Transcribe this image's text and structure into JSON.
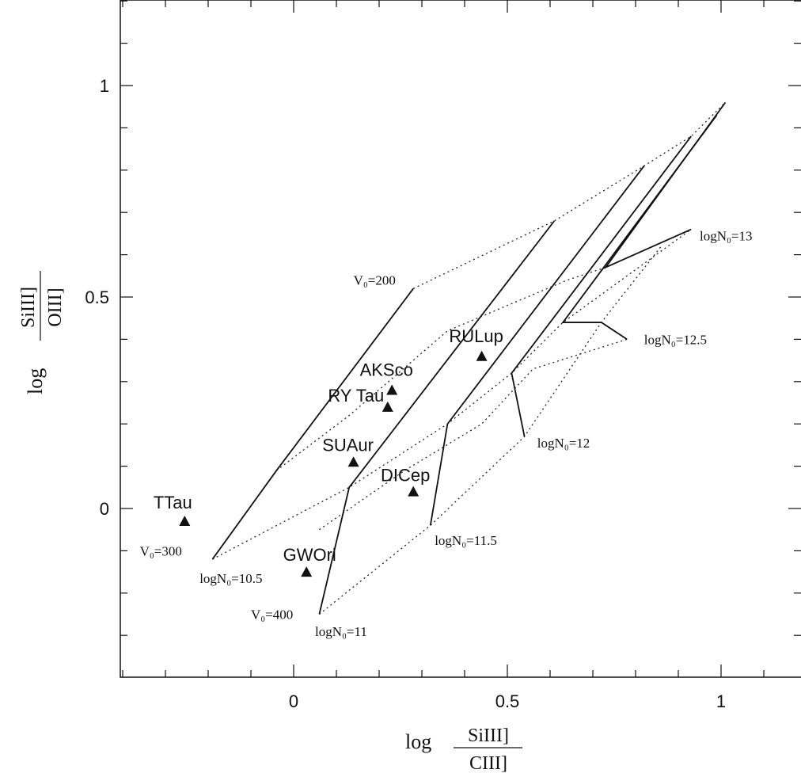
{
  "chart_data": {
    "type": "scatter",
    "x_axis": {
      "label_prefix": "log",
      "label_numerator": "SiIII]",
      "label_denominator": "CIII]",
      "range": [
        -0.4,
        1.2
      ],
      "major_ticks": [
        0,
        0.5,
        1
      ],
      "tick_labels": [
        "0",
        "0.5",
        "1"
      ],
      "minor_tick_step": 0.1
    },
    "y_axis": {
      "label_prefix": "log",
      "label_numerator": "SiIII]",
      "label_denominator": "OIII]",
      "range": [
        -0.4,
        1.2
      ],
      "major_ticks": [
        0,
        0.5,
        1
      ],
      "tick_labels": [
        "0",
        "0.5",
        "1"
      ],
      "minor_tick_step": 0.1
    },
    "grid": false,
    "stars": [
      {
        "name": "TTau",
        "x": -0.255,
        "y": -0.03
      },
      {
        "name": "GWOri",
        "x": 0.03,
        "y": -0.15
      },
      {
        "name": "SUAur",
        "x": 0.14,
        "y": 0.11
      },
      {
        "name": "RY Tau",
        "x": 0.22,
        "y": 0.24
      },
      {
        "name": "AKSco",
        "x": 0.23,
        "y": 0.28
      },
      {
        "name": "DICep",
        "x": 0.28,
        "y": 0.04
      },
      {
        "name": "RULup",
        "x": 0.44,
        "y": 0.36
      }
    ],
    "density_curves": [
      {
        "label": "logN₀=10.5",
        "points": [
          [
            -0.19,
            -0.12
          ],
          [
            -0.04,
            0.09
          ],
          [
            0.28,
            0.52
          ]
        ]
      },
      {
        "label": "logN₀=11",
        "points": [
          [
            0.06,
            -0.25
          ],
          [
            0.13,
            0.05
          ],
          [
            0.61,
            0.68
          ]
        ]
      },
      {
        "label": "logN₀=11.5",
        "points": [
          [
            0.32,
            -0.04
          ],
          [
            0.36,
            0.2
          ],
          [
            0.82,
            0.81
          ]
        ]
      },
      {
        "label": "logN₀=12",
        "points": [
          [
            0.54,
            0.17
          ],
          [
            0.51,
            0.32
          ],
          [
            0.93,
            0.88
          ]
        ]
      },
      {
        "label": "logN₀=12.5",
        "points": [
          [
            0.78,
            0.4
          ],
          [
            0.72,
            0.44
          ],
          [
            0.63,
            0.44
          ],
          [
            0.99,
            0.93
          ]
        ]
      },
      {
        "label": "logN₀=13",
        "points": [
          [
            0.93,
            0.66
          ],
          [
            0.73,
            0.57
          ],
          [
            1.01,
            0.96
          ]
        ]
      }
    ],
    "velocity_lines": [
      {
        "label": "V₀=200",
        "points": [
          [
            0.28,
            0.52
          ],
          [
            0.61,
            0.68
          ],
          [
            0.82,
            0.81
          ],
          [
            0.93,
            0.88
          ],
          [
            1.01,
            0.96
          ]
        ]
      },
      {
        "label": "",
        "points": [
          [
            -0.04,
            0.09
          ],
          [
            0.13,
            0.22
          ],
          [
            0.36,
            0.42
          ],
          [
            0.64,
            0.54
          ],
          [
            0.73,
            0.57
          ]
        ]
      },
      {
        "label": "V₀=300",
        "points": [
          [
            -0.19,
            -0.12
          ],
          [
            0.13,
            0.05
          ],
          [
            0.36,
            0.2
          ],
          [
            0.51,
            0.32
          ],
          [
            0.63,
            0.44
          ],
          [
            0.93,
            0.66
          ]
        ]
      },
      {
        "label": "",
        "points": [
          [
            0.06,
            -0.05
          ],
          [
            0.26,
            0.09
          ],
          [
            0.44,
            0.2
          ],
          [
            0.56,
            0.33
          ],
          [
            0.78,
            0.4
          ]
        ]
      },
      {
        "label": "V₀=400",
        "points": [
          [
            0.06,
            -0.25
          ],
          [
            0.32,
            -0.04
          ],
          [
            0.54,
            0.17
          ],
          [
            0.72,
            0.44
          ],
          [
            0.86,
            0.62
          ]
        ]
      }
    ],
    "annotations": [
      {
        "text": "V₀=200",
        "x": 0.14,
        "y": 0.54
      },
      {
        "text": "V₀=300",
        "x": -0.36,
        "y": -0.1
      },
      {
        "text": "V₀=400",
        "x": -0.1,
        "y": -0.25
      },
      {
        "text": "logN₀=10.5",
        "x": -0.22,
        "y": -0.165
      },
      {
        "text": "logN₀=10.5",
        "x": 0,
        "y": 0,
        "hidden": true
      }
    ],
    "curve_labels": [
      {
        "text": "logN₀=10.5",
        "x": -0.22,
        "y": -0.165
      },
      {
        "text": "logN₀=11",
        "x": 0.05,
        "y": -0.29
      },
      {
        "text": "logN₀=11.5",
        "x": 0.33,
        "y": -0.075
      },
      {
        "text": "logN₀=12",
        "x": 0.57,
        "y": 0.155
      },
      {
        "text": "logN₀=12.5",
        "x": 0.82,
        "y": 0.4
      },
      {
        "text": "logN₀=13",
        "x": 0.95,
        "y": 0.645
      }
    ]
  }
}
